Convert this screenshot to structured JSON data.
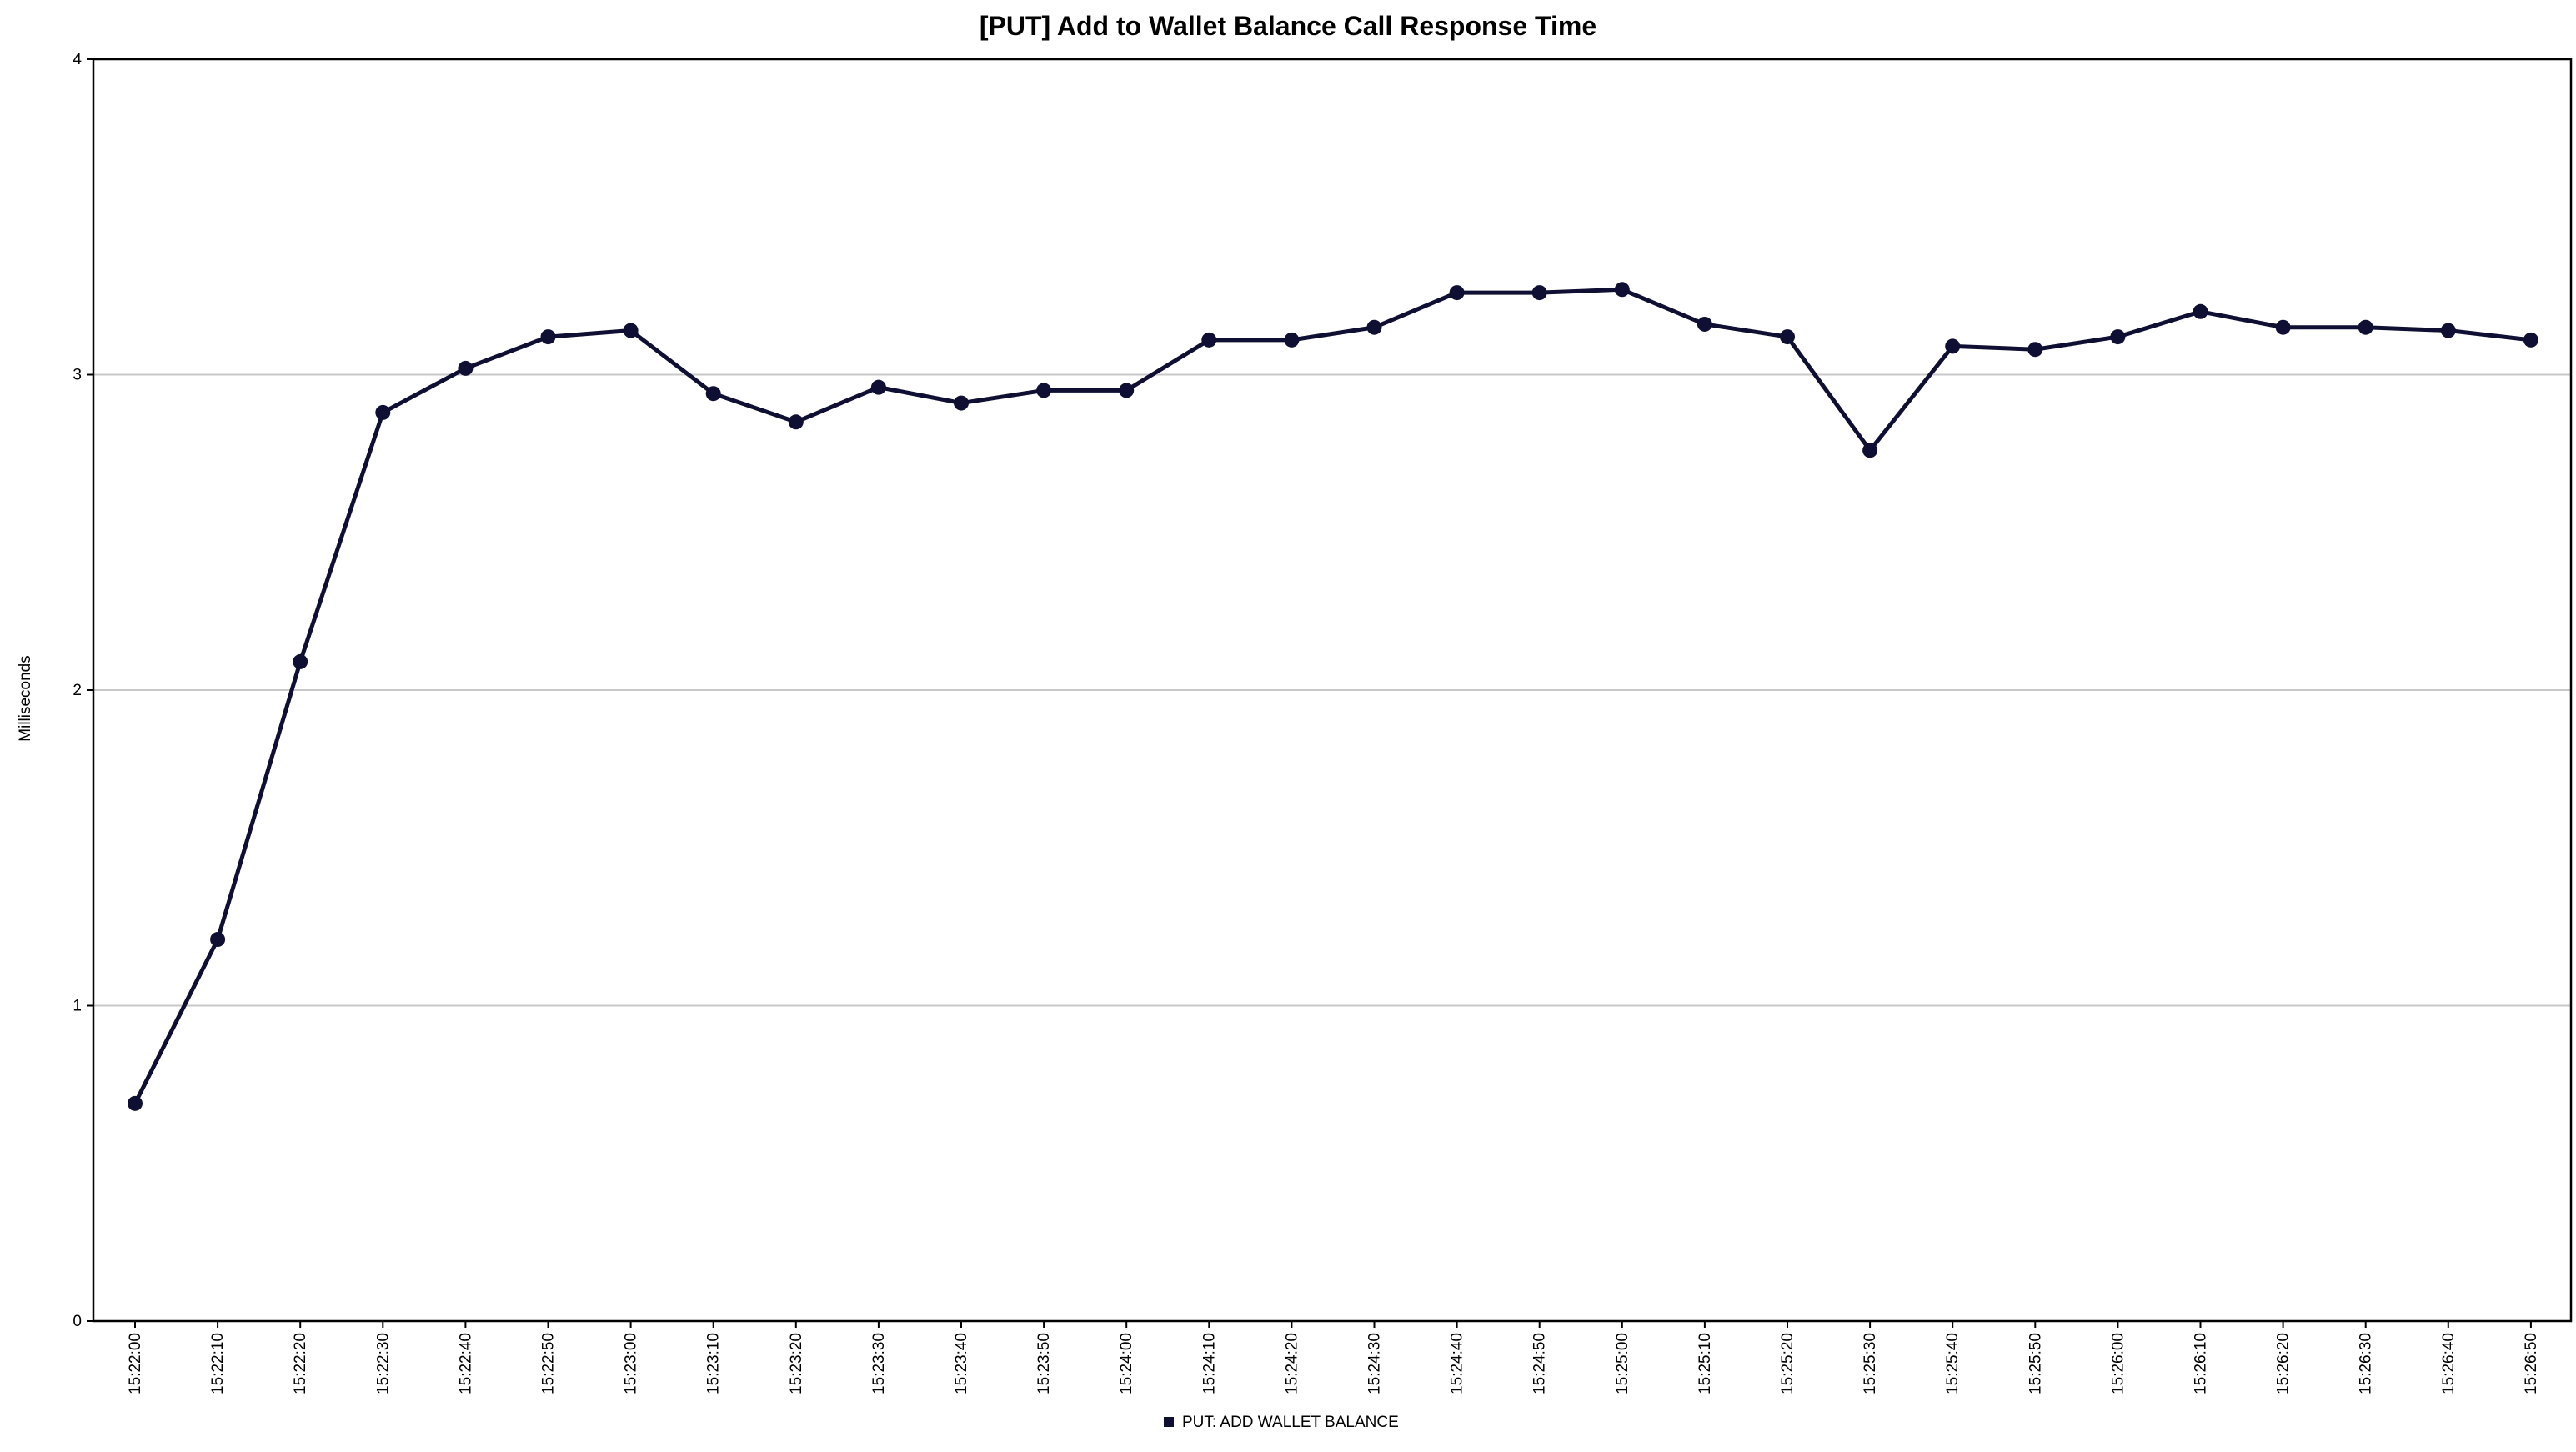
{
  "chart_data": {
    "type": "line",
    "title": "[PUT] Add to Wallet Balance Call Response Time",
    "xlabel": "",
    "ylabel": "Milliseconds",
    "ylim": [
      0,
      4
    ],
    "yticks": [
      "0",
      "1",
      "2",
      "3",
      "4"
    ],
    "grid": "horizontal",
    "legend_position": "bottom-center",
    "categories": [
      "15:22:00",
      "15:22:10",
      "15:22:20",
      "15:22:30",
      "15:22:40",
      "15:22:50",
      "15:23:00",
      "15:23:10",
      "15:23:20",
      "15:23:30",
      "15:23:40",
      "15:23:50",
      "15:24:00",
      "15:24:10",
      "15:24:20",
      "15:24:30",
      "15:24:40",
      "15:24:50",
      "15:25:00",
      "15:25:10",
      "15:25:20",
      "15:25:30",
      "15:25:40",
      "15:25:50",
      "15:26:00",
      "15:26:10",
      "15:26:20",
      "15:26:30",
      "15:26:40",
      "15:26:50"
    ],
    "series": [
      {
        "name": "PUT: ADD WALLET BALANCE",
        "color": "#0f0f33",
        "values": [
          0.69,
          1.21,
          2.09,
          2.88,
          3.02,
          3.12,
          3.14,
          2.94,
          2.85,
          2.96,
          2.91,
          2.95,
          2.95,
          3.11,
          3.11,
          3.15,
          3.26,
          3.26,
          3.27,
          3.16,
          3.12,
          2.76,
          3.09,
          3.08,
          3.12,
          3.2,
          3.15,
          3.15,
          3.14,
          3.11
        ]
      }
    ]
  }
}
